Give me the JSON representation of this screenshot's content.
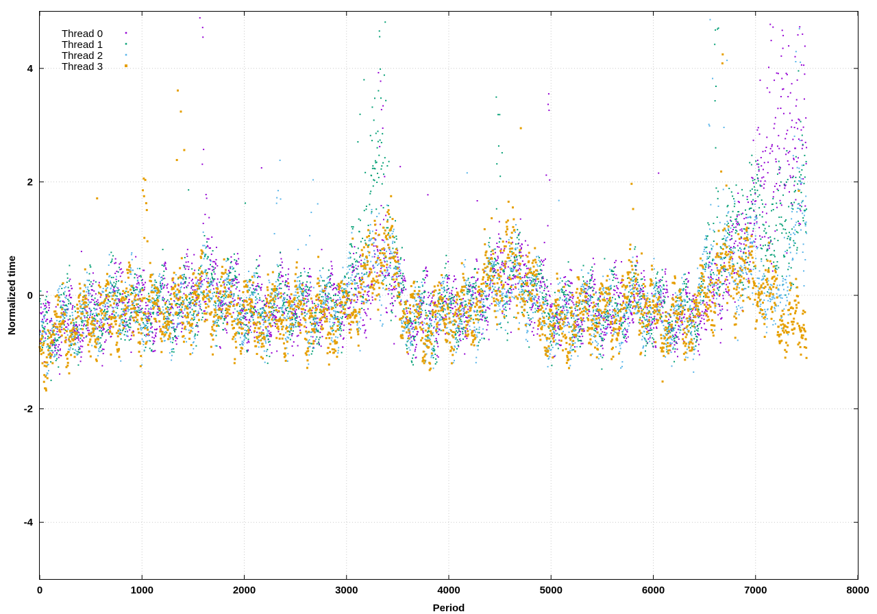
{
  "chart_data": {
    "type": "scatter",
    "title": "",
    "xlabel": "Period",
    "ylabel": "Normalized time",
    "xlim": [
      0,
      8000
    ],
    "ylim": [
      -5,
      5
    ],
    "x_ticks": [
      0,
      1000,
      2000,
      3000,
      4000,
      5000,
      6000,
      7000,
      8000
    ],
    "y_ticks": [
      -4,
      -2,
      0,
      2,
      4
    ],
    "grid": true,
    "legend_position": "top-left",
    "series": [
      {
        "name": "Thread 0",
        "color": "#9400d3",
        "marker": "dot",
        "point_count": 7500,
        "x_range": [
          0,
          7500
        ],
        "profile": [
          [
            0,
            -0.8
          ],
          [
            200,
            -0.5
          ],
          [
            400,
            -0.4
          ],
          [
            600,
            -0.3
          ],
          [
            800,
            -0.1
          ],
          [
            1000,
            -0.3
          ],
          [
            1200,
            -0.2
          ],
          [
            1400,
            -0.1
          ],
          [
            1600,
            0.3
          ],
          [
            1800,
            0.1
          ],
          [
            2000,
            -0.2
          ],
          [
            2200,
            -0.3
          ],
          [
            2400,
            -0.1
          ],
          [
            2600,
            -0.3
          ],
          [
            2800,
            -0.2
          ],
          [
            3000,
            -0.1
          ],
          [
            3200,
            0.2
          ],
          [
            3400,
            0.6
          ],
          [
            3600,
            -0.4
          ],
          [
            3800,
            -0.3
          ],
          [
            4000,
            -0.2
          ],
          [
            4200,
            -0.3
          ],
          [
            4400,
            0.2
          ],
          [
            4600,
            0.5
          ],
          [
            4800,
            0.2
          ],
          [
            5000,
            -0.3
          ],
          [
            5200,
            -0.3
          ],
          [
            5400,
            -0.2
          ],
          [
            5600,
            -0.3
          ],
          [
            5800,
            -0.1
          ],
          [
            6000,
            -0.3
          ],
          [
            6200,
            -0.4
          ],
          [
            6400,
            -0.3
          ],
          [
            6600,
            0.0
          ],
          [
            6800,
            0.8
          ],
          [
            7000,
            1.5
          ],
          [
            7200,
            2.5
          ],
          [
            7400,
            3.0
          ],
          [
            7500,
            3.0
          ]
        ],
        "spikes": [
          [
            1600,
            4.9
          ],
          [
            3350,
            4.8
          ],
          [
            7150,
            4.9
          ],
          [
            7450,
            5.0
          ],
          [
            4950,
            3.6
          ]
        ]
      },
      {
        "name": "Thread 1",
        "color": "#009e73",
        "marker": "dot",
        "point_count": 7500,
        "x_range": [
          0,
          7500
        ],
        "profile": [
          [
            0,
            -0.8
          ],
          [
            200,
            -0.5
          ],
          [
            400,
            -0.4
          ],
          [
            600,
            -0.3
          ],
          [
            800,
            -0.1
          ],
          [
            1000,
            -0.3
          ],
          [
            1200,
            -0.2
          ],
          [
            1400,
            -0.2
          ],
          [
            1600,
            0.2
          ],
          [
            1800,
            0.0
          ],
          [
            2000,
            -0.2
          ],
          [
            2200,
            -0.3
          ],
          [
            2400,
            -0.1
          ],
          [
            2600,
            -0.3
          ],
          [
            2800,
            -0.2
          ],
          [
            3000,
            0.0
          ],
          [
            3200,
            1.0
          ],
          [
            3350,
            2.5
          ],
          [
            3450,
            0.5
          ],
          [
            3600,
            -0.4
          ],
          [
            3800,
            -0.4
          ],
          [
            4000,
            -0.2
          ],
          [
            4200,
            -0.3
          ],
          [
            4400,
            0.2
          ],
          [
            4600,
            0.4
          ],
          [
            4800,
            0.2
          ],
          [
            5000,
            -0.4
          ],
          [
            5200,
            -0.3
          ],
          [
            5400,
            -0.2
          ],
          [
            5600,
            -0.3
          ],
          [
            5800,
            -0.1
          ],
          [
            6000,
            -0.3
          ],
          [
            6200,
            -0.4
          ],
          [
            6400,
            -0.3
          ],
          [
            6600,
            0.5
          ],
          [
            6800,
            1.0
          ],
          [
            7000,
            1.5
          ],
          [
            7200,
            1.0
          ],
          [
            7400,
            1.5
          ],
          [
            7500,
            1.5
          ]
        ],
        "spikes": [
          [
            3350,
            4.9
          ],
          [
            6600,
            4.9
          ],
          [
            4500,
            3.9
          ],
          [
            3150,
            3.8
          ]
        ]
      },
      {
        "name": "Thread 2",
        "color": "#56b4e9",
        "marker": "dot",
        "point_count": 7500,
        "x_range": [
          0,
          7500
        ],
        "profile": [
          [
            0,
            -0.8
          ],
          [
            200,
            -0.5
          ],
          [
            400,
            -0.4
          ],
          [
            600,
            -0.3
          ],
          [
            800,
            -0.1
          ],
          [
            1000,
            -0.3
          ],
          [
            1200,
            -0.2
          ],
          [
            1400,
            -0.4
          ],
          [
            1600,
            0.1
          ],
          [
            1800,
            -0.1
          ],
          [
            2000,
            -0.3
          ],
          [
            2200,
            -0.3
          ],
          [
            2400,
            -0.2
          ],
          [
            2600,
            -0.3
          ],
          [
            2800,
            -0.3
          ],
          [
            3000,
            -0.1
          ],
          [
            3200,
            0.3
          ],
          [
            3400,
            0.8
          ],
          [
            3600,
            -0.4
          ],
          [
            3800,
            -0.5
          ],
          [
            4000,
            -0.3
          ],
          [
            4200,
            -0.4
          ],
          [
            4400,
            0.1
          ],
          [
            4600,
            0.3
          ],
          [
            4800,
            0.0
          ],
          [
            5000,
            -0.6
          ],
          [
            5200,
            -0.4
          ],
          [
            5400,
            -0.3
          ],
          [
            5600,
            -0.4
          ],
          [
            5800,
            -0.2
          ],
          [
            6000,
            -0.3
          ],
          [
            6200,
            -0.5
          ],
          [
            6400,
            -0.4
          ],
          [
            6600,
            0.8
          ],
          [
            6800,
            0.5
          ],
          [
            7000,
            0.6
          ],
          [
            7200,
            -0.5
          ],
          [
            7400,
            1.5
          ],
          [
            7500,
            1.5
          ]
        ],
        "spikes": [
          [
            6550,
            4.9
          ],
          [
            7400,
            4.9
          ],
          [
            6700,
            4.5
          ],
          [
            2330,
            2.6
          ],
          [
            2680,
            2.6
          ]
        ]
      },
      {
        "name": "Thread 3",
        "color": "#e69f00",
        "marker": "square",
        "point_count": 7500,
        "x_range": [
          0,
          7500
        ],
        "profile": [
          [
            0,
            -0.9
          ],
          [
            200,
            -0.6
          ],
          [
            400,
            -0.5
          ],
          [
            600,
            -0.4
          ],
          [
            800,
            -0.2
          ],
          [
            1000,
            -0.3
          ],
          [
            1200,
            -0.3
          ],
          [
            1400,
            -0.3
          ],
          [
            1600,
            0.0
          ],
          [
            1800,
            -0.2
          ],
          [
            2000,
            -0.4
          ],
          [
            2200,
            -0.4
          ],
          [
            2400,
            -0.3
          ],
          [
            2600,
            -0.4
          ],
          [
            2800,
            -0.4
          ],
          [
            3000,
            -0.3
          ],
          [
            3200,
            0.3
          ],
          [
            3400,
            0.9
          ],
          [
            3600,
            -0.4
          ],
          [
            3800,
            -0.5
          ],
          [
            4000,
            -0.3
          ],
          [
            4200,
            -0.4
          ],
          [
            4400,
            0.3
          ],
          [
            4600,
            0.6
          ],
          [
            4800,
            0.1
          ],
          [
            5000,
            -0.6
          ],
          [
            5200,
            -0.4
          ],
          [
            5400,
            -0.3
          ],
          [
            5600,
            -0.4
          ],
          [
            5800,
            0.1
          ],
          [
            6000,
            -0.4
          ],
          [
            6200,
            -0.5
          ],
          [
            6400,
            -0.4
          ],
          [
            6600,
            0.3
          ],
          [
            6800,
            0.5
          ],
          [
            7000,
            0.3
          ],
          [
            7200,
            -0.2
          ],
          [
            7400,
            -0.6
          ],
          [
            7500,
            -0.6
          ]
        ],
        "spikes": [
          [
            1380,
            3.7
          ],
          [
            1020,
            2.4
          ],
          [
            5820,
            3.2
          ],
          [
            6680,
            4.9
          ]
        ]
      }
    ]
  }
}
